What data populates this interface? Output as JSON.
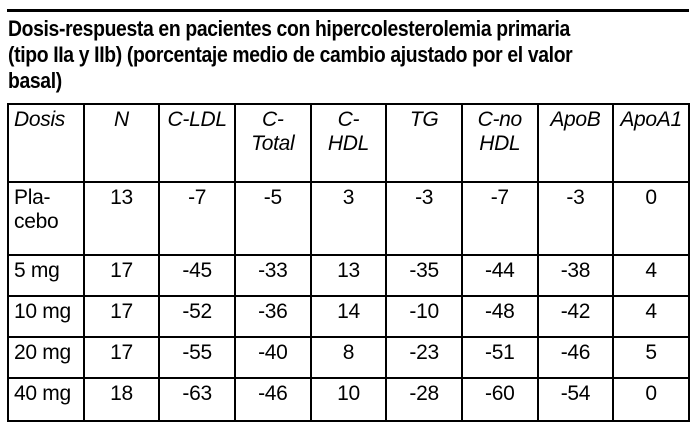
{
  "title": "Dosis-respuesta en pacientes con hipercolesterolemia primaria\n(tipo IIa y IIb) (porcentaje medio de cambio ajustado por el valor\nbasal)",
  "table": {
    "headers": [
      "Dosis",
      "N",
      "C-LDL",
      "C-\nTotal",
      "C-\nHDL",
      "TG",
      "C-no\nHDL",
      "ApoB",
      "ApoA1"
    ],
    "rows": [
      [
        "Pla-\ncebo",
        "13",
        "-7",
        "-5",
        "3",
        "-3",
        "-7",
        "-3",
        "0"
      ],
      [
        "5 mg",
        "17",
        "-45",
        "-33",
        "13",
        "-35",
        "-44",
        "-38",
        "4"
      ],
      [
        "10 mg",
        "17",
        "-52",
        "-36",
        "14",
        "-10",
        "-48",
        "-42",
        "4"
      ],
      [
        "20 mg",
        "17",
        "-55",
        "-40",
        "8",
        "-23",
        "-51",
        "-46",
        "5"
      ],
      [
        "40 mg",
        "18",
        "-63",
        "-46",
        "10",
        "-28",
        "-60",
        "-54",
        "0"
      ]
    ]
  },
  "colors": {
    "text": "#000000",
    "border": "#000000",
    "background": "#ffffff"
  }
}
